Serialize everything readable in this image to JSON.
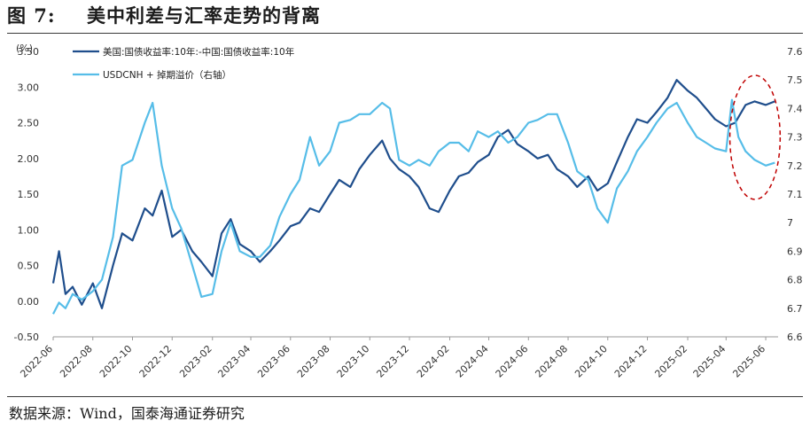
{
  "figure": {
    "title": "图 7:",
    "subtitle": "美中利差与汇率走势的背离",
    "source": "数据来源：Wind，国泰海通证券研究"
  },
  "chart_data": {
    "type": "line",
    "left_axis_unit": "(%)",
    "ylim_left": [
      -0.5,
      3.5
    ],
    "ylim_right": [
      6.6,
      7.6
    ],
    "yticks_left": [
      "3.50",
      "3.00",
      "2.50",
      "2.00",
      "1.50",
      "1.00",
      "0.50",
      "0.00",
      "-0.50"
    ],
    "yticks_right": [
      "7.6",
      "7.5",
      "7.4",
      "7.3",
      "7.2",
      "7.1",
      "7",
      "6.9",
      "6.8",
      "6.7",
      "6.6"
    ],
    "x_ticks": [
      "2022-06",
      "2022-08",
      "2022-10",
      "2022-12",
      "2023-02",
      "2023-04",
      "2023-06",
      "2023-08",
      "2023-10",
      "2023-12",
      "2024-02",
      "2024-04",
      "2024-06",
      "2024-08",
      "2024-10",
      "2024-12",
      "2025-02",
      "2025-04",
      "2025-06"
    ],
    "series": [
      {
        "name": "美国:国债收益率:10年:-中国:国债收益率:10年",
        "axis": "left",
        "color": "#1f4e8c",
        "points": [
          [
            "2022-06-01",
            0.25
          ],
          [
            "2022-06-10",
            0.7
          ],
          [
            "2022-06-20",
            0.1
          ],
          [
            "2022-07-01",
            0.2
          ],
          [
            "2022-07-15",
            -0.05
          ],
          [
            "2022-08-01",
            0.25
          ],
          [
            "2022-08-15",
            -0.1
          ],
          [
            "2022-09-01",
            0.5
          ],
          [
            "2022-09-15",
            0.95
          ],
          [
            "2022-10-01",
            0.85
          ],
          [
            "2022-10-20",
            1.3
          ],
          [
            "2022-11-01",
            1.2
          ],
          [
            "2022-11-15",
            1.55
          ],
          [
            "2022-12-01",
            0.9
          ],
          [
            "2022-12-15",
            1.0
          ],
          [
            "2023-01-01",
            0.7
          ],
          [
            "2023-01-15",
            0.55
          ],
          [
            "2023-02-01",
            0.35
          ],
          [
            "2023-02-15",
            0.95
          ],
          [
            "2023-03-01",
            1.15
          ],
          [
            "2023-03-15",
            0.8
          ],
          [
            "2023-04-01",
            0.7
          ],
          [
            "2023-04-15",
            0.55
          ],
          [
            "2023-05-01",
            0.7
          ],
          [
            "2023-05-15",
            0.85
          ],
          [
            "2023-06-01",
            1.05
          ],
          [
            "2023-06-15",
            1.1
          ],
          [
            "2023-07-01",
            1.3
          ],
          [
            "2023-07-15",
            1.25
          ],
          [
            "2023-08-01",
            1.5
          ],
          [
            "2023-08-15",
            1.7
          ],
          [
            "2023-09-01",
            1.6
          ],
          [
            "2023-09-15",
            1.85
          ],
          [
            "2023-10-01",
            2.05
          ],
          [
            "2023-10-20",
            2.25
          ],
          [
            "2023-11-01",
            2.0
          ],
          [
            "2023-11-15",
            1.85
          ],
          [
            "2023-12-01",
            1.75
          ],
          [
            "2023-12-15",
            1.6
          ],
          [
            "2024-01-01",
            1.3
          ],
          [
            "2024-01-15",
            1.25
          ],
          [
            "2024-02-01",
            1.55
          ],
          [
            "2024-02-15",
            1.75
          ],
          [
            "2024-03-01",
            1.8
          ],
          [
            "2024-03-15",
            1.95
          ],
          [
            "2024-04-01",
            2.05
          ],
          [
            "2024-04-15",
            2.3
          ],
          [
            "2024-05-01",
            2.4
          ],
          [
            "2024-05-15",
            2.2
          ],
          [
            "2024-06-01",
            2.1
          ],
          [
            "2024-06-15",
            2.0
          ],
          [
            "2024-07-01",
            2.05
          ],
          [
            "2024-07-15",
            1.85
          ],
          [
            "2024-08-01",
            1.75
          ],
          [
            "2024-08-15",
            1.6
          ],
          [
            "2024-09-01",
            1.75
          ],
          [
            "2024-09-15",
            1.55
          ],
          [
            "2024-10-01",
            1.65
          ],
          [
            "2024-10-15",
            1.95
          ],
          [
            "2024-11-01",
            2.3
          ],
          [
            "2024-11-15",
            2.55
          ],
          [
            "2024-12-01",
            2.5
          ],
          [
            "2024-12-15",
            2.65
          ],
          [
            "2025-01-01",
            2.85
          ],
          [
            "2025-01-15",
            3.1
          ],
          [
            "2025-02-01",
            2.95
          ],
          [
            "2025-02-15",
            2.85
          ],
          [
            "2025-03-01",
            2.7
          ],
          [
            "2025-03-15",
            2.55
          ],
          [
            "2025-04-01",
            2.45
          ],
          [
            "2025-04-15",
            2.5
          ],
          [
            "2025-05-01",
            2.75
          ],
          [
            "2025-05-15",
            2.8
          ],
          [
            "2025-06-01",
            2.75
          ],
          [
            "2025-06-15",
            2.8
          ]
        ]
      },
      {
        "name": "USDCNH + 掉期溢价（右轴）",
        "axis": "right",
        "color": "#56bde8",
        "points": [
          [
            "2022-06-01",
            6.68
          ],
          [
            "2022-06-10",
            6.72
          ],
          [
            "2022-06-20",
            6.7
          ],
          [
            "2022-07-01",
            6.75
          ],
          [
            "2022-07-15",
            6.73
          ],
          [
            "2022-08-01",
            6.76
          ],
          [
            "2022-08-15",
            6.8
          ],
          [
            "2022-09-01",
            6.95
          ],
          [
            "2022-09-15",
            7.2
          ],
          [
            "2022-10-01",
            7.22
          ],
          [
            "2022-10-20",
            7.35
          ],
          [
            "2022-11-01",
            7.42
          ],
          [
            "2022-11-15",
            7.2
          ],
          [
            "2022-12-01",
            7.05
          ],
          [
            "2022-12-15",
            6.98
          ],
          [
            "2023-01-01",
            6.85
          ],
          [
            "2023-01-15",
            6.74
          ],
          [
            "2023-02-01",
            6.75
          ],
          [
            "2023-02-15",
            6.9
          ],
          [
            "2023-03-01",
            7.0
          ],
          [
            "2023-03-15",
            6.9
          ],
          [
            "2023-04-01",
            6.88
          ],
          [
            "2023-04-15",
            6.88
          ],
          [
            "2023-05-01",
            6.92
          ],
          [
            "2023-05-15",
            7.02
          ],
          [
            "2023-06-01",
            7.1
          ],
          [
            "2023-06-15",
            7.15
          ],
          [
            "2023-07-01",
            7.3
          ],
          [
            "2023-07-15",
            7.2
          ],
          [
            "2023-08-01",
            7.25
          ],
          [
            "2023-08-15",
            7.35
          ],
          [
            "2023-09-01",
            7.36
          ],
          [
            "2023-09-15",
            7.38
          ],
          [
            "2023-10-01",
            7.38
          ],
          [
            "2023-10-20",
            7.42
          ],
          [
            "2023-11-01",
            7.4
          ],
          [
            "2023-11-15",
            7.22
          ],
          [
            "2023-12-01",
            7.2
          ],
          [
            "2023-12-15",
            7.22
          ],
          [
            "2024-01-01",
            7.2
          ],
          [
            "2024-01-15",
            7.25
          ],
          [
            "2024-02-01",
            7.28
          ],
          [
            "2024-02-15",
            7.28
          ],
          [
            "2024-03-01",
            7.25
          ],
          [
            "2024-03-15",
            7.32
          ],
          [
            "2024-04-01",
            7.3
          ],
          [
            "2024-04-15",
            7.32
          ],
          [
            "2024-05-01",
            7.28
          ],
          [
            "2024-05-15",
            7.3
          ],
          [
            "2024-06-01",
            7.35
          ],
          [
            "2024-06-15",
            7.36
          ],
          [
            "2024-07-01",
            7.38
          ],
          [
            "2024-07-15",
            7.38
          ],
          [
            "2024-08-01",
            7.28
          ],
          [
            "2024-08-15",
            7.18
          ],
          [
            "2024-09-01",
            7.15
          ],
          [
            "2024-09-15",
            7.05
          ],
          [
            "2024-10-01",
            7.0
          ],
          [
            "2024-10-15",
            7.12
          ],
          [
            "2024-11-01",
            7.18
          ],
          [
            "2024-11-15",
            7.25
          ],
          [
            "2024-12-01",
            7.3
          ],
          [
            "2024-12-15",
            7.35
          ],
          [
            "2025-01-01",
            7.4
          ],
          [
            "2025-01-15",
            7.42
          ],
          [
            "2025-02-01",
            7.35
          ],
          [
            "2025-02-15",
            7.3
          ],
          [
            "2025-03-01",
            7.28
          ],
          [
            "2025-03-15",
            7.26
          ],
          [
            "2025-04-01",
            7.25
          ],
          [
            "2025-04-10",
            7.43
          ],
          [
            "2025-04-20",
            7.3
          ],
          [
            "2025-05-01",
            7.25
          ],
          [
            "2025-05-15",
            7.22
          ],
          [
            "2025-06-01",
            7.2
          ],
          [
            "2025-06-15",
            7.21
          ]
        ]
      }
    ],
    "annotation": {
      "type": "dashed-ellipse",
      "color": "#c00000",
      "x_range": [
        "2025-04-15",
        "2025-06-15"
      ]
    }
  }
}
